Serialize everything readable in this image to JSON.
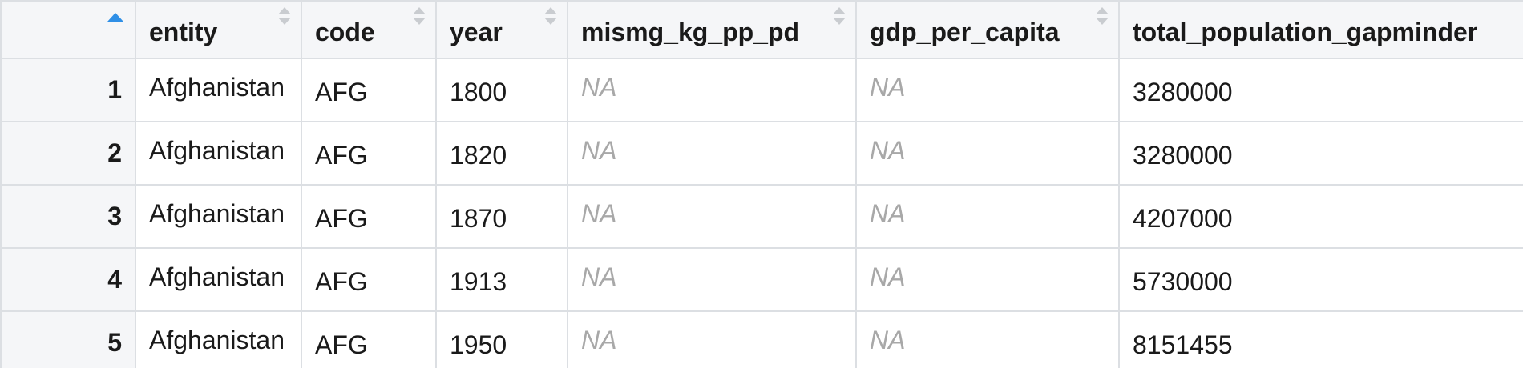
{
  "table": {
    "columns": [
      {
        "label": ""
      },
      {
        "label": "entity"
      },
      {
        "label": "code"
      },
      {
        "label": "year"
      },
      {
        "label": "mismg_kg_pp_pd"
      },
      {
        "label": "gdp_per_capita"
      },
      {
        "label": "total_population_gapminder"
      }
    ],
    "sort": {
      "column": "row-index",
      "direction": "ascending"
    },
    "rows": [
      {
        "index": "1",
        "entity": "Afghanistan",
        "code": "AFG",
        "year": "1800",
        "mismg": "NA",
        "gdp": "NA",
        "pop": "3280000"
      },
      {
        "index": "2",
        "entity": "Afghanistan",
        "code": "AFG",
        "year": "1820",
        "mismg": "NA",
        "gdp": "NA",
        "pop": "3280000"
      },
      {
        "index": "3",
        "entity": "Afghanistan",
        "code": "AFG",
        "year": "1870",
        "mismg": "NA",
        "gdp": "NA",
        "pop": "4207000"
      },
      {
        "index": "4",
        "entity": "Afghanistan",
        "code": "AFG",
        "year": "1913",
        "mismg": "NA",
        "gdp": "NA",
        "pop": "5730000"
      },
      {
        "index": "5",
        "entity": "Afghanistan",
        "code": "AFG",
        "year": "1950",
        "mismg": "NA",
        "gdp": "NA",
        "pop": "8151455"
      }
    ],
    "colors": {
      "header_bg": "#f5f6f8",
      "border": "#dcdfe3",
      "sort_active": "#2f8fe6",
      "sort_inactive": "#c9ccd0",
      "na_text": "#a8a8a8"
    }
  }
}
